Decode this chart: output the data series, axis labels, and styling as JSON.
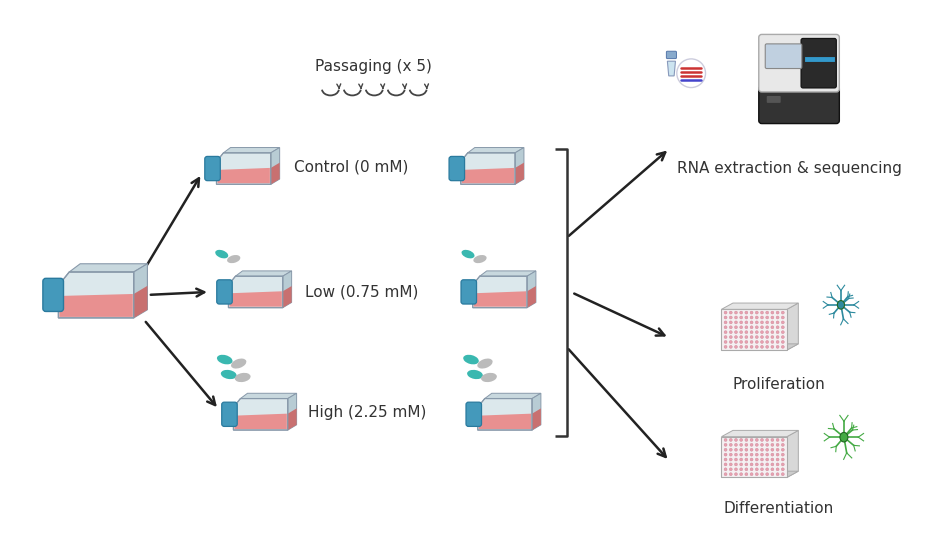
{
  "bg_color": "#ffffff",
  "label_fontsize": 11,
  "passaging_text": "Passaging (x 5)",
  "control_text": "Control (0 mM)",
  "low_text": "Low (0.75 mM)",
  "high_text": "High (2.25 mM)",
  "rna_text": "RNA extraction & sequencing",
  "prolif_text": "Proliferation",
  "diff_text": "Differentiation",
  "flask_body": "#dce8ec",
  "flask_top": "#c8d8de",
  "flask_right": "#b8ccd4",
  "flask_liquid": "#e89090",
  "flask_liquid_top": "#d07878",
  "flask_cap": "#4499bb",
  "flask_edge": "#8899aa",
  "pill_teal": "#3ab8b0",
  "pill_gray": "#bbbbbb",
  "arrow_color": "#222222",
  "plate_face": "#f5f0f2",
  "plate_well": "#e8a0b0",
  "plate_edge": "#aaaaaa",
  "seq_body_light": "#e8e8e8",
  "seq_body_dark": "#333333",
  "seq_screen": "#c0d0e0",
  "seq_stripe": "#4488cc",
  "neuron_teal": "#2d8a9e",
  "neuron_green": "#44aa44"
}
